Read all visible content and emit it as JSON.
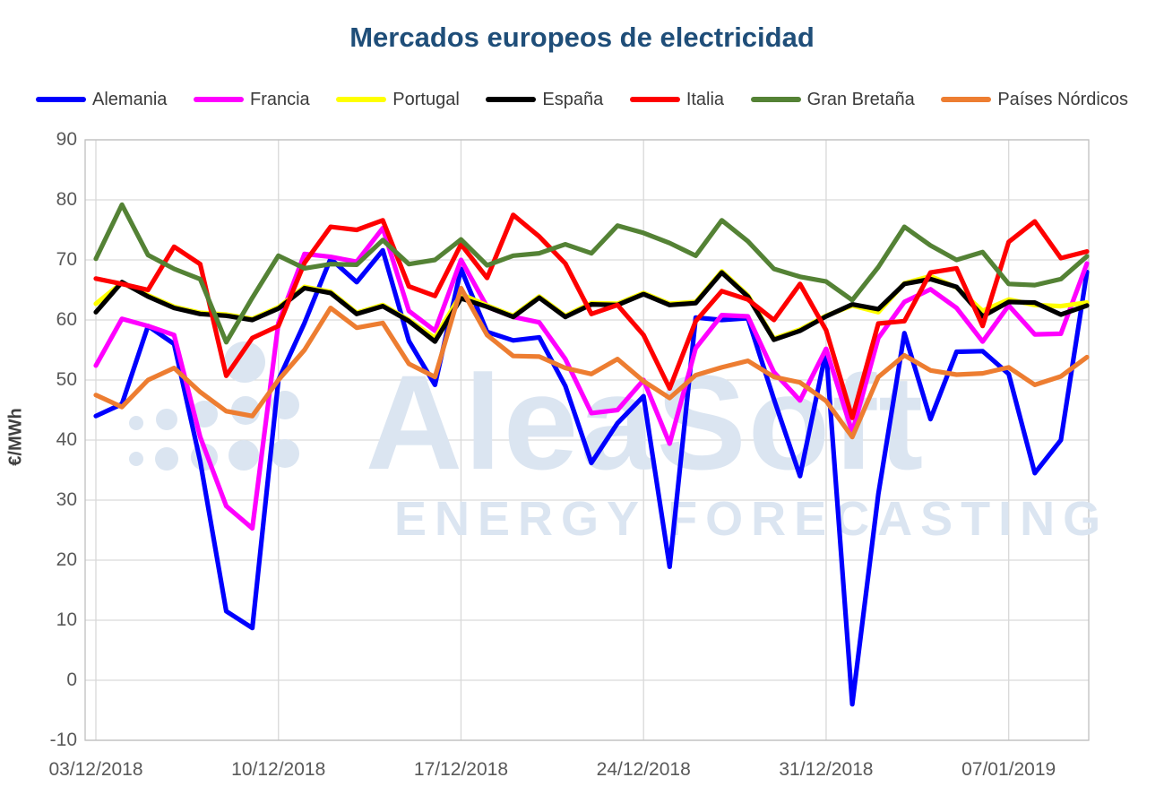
{
  "title": "Mercados europeos de electricidad",
  "y_axis_title": "€/MWh",
  "watermark": {
    "brand": "AleaSoft",
    "subtitle": "ENERGY FORECASTING"
  },
  "legend": {
    "items": [
      {
        "label": "Alemania",
        "color": "#0000fe"
      },
      {
        "label": "Francia",
        "color": "#ff00ff"
      },
      {
        "label": "Portugal",
        "color": "#ffff00"
      },
      {
        "label": "España",
        "color": "#000000"
      },
      {
        "label": "Italia",
        "color": "#fe0000"
      },
      {
        "label": "Gran Bretaña",
        "color": "#548235"
      },
      {
        "label": "Países Nórdicos",
        "color": "#ed7d31"
      }
    ]
  },
  "chart_data": {
    "type": "line",
    "title": "Mercados europeos de electricidad",
    "xlabel": "",
    "ylabel": "€/MWh",
    "ylim": [
      -10,
      90
    ],
    "ytick_interval": 10,
    "grid": true,
    "legend_position": "top",
    "y_tick_labels": [
      "90",
      "80",
      "70",
      "60",
      "50",
      "40",
      "30",
      "20",
      "10",
      "0",
      "-10"
    ],
    "x_tick_labels": [
      "03/12/2018",
      "10/12/2018",
      "17/12/2018",
      "24/12/2018",
      "31/12/2018",
      "07/01/2019"
    ],
    "x_tick_indices": [
      0,
      7,
      14,
      21,
      28,
      35
    ],
    "categories": [
      "03/12/2018",
      "04/12/2018",
      "05/12/2018",
      "06/12/2018",
      "07/12/2018",
      "08/12/2018",
      "09/12/2018",
      "10/12/2018",
      "11/12/2018",
      "12/12/2018",
      "13/12/2018",
      "14/12/2018",
      "15/12/2018",
      "16/12/2018",
      "17/12/2018",
      "18/12/2018",
      "19/12/2018",
      "20/12/2018",
      "21/12/2018",
      "22/12/2018",
      "23/12/2018",
      "24/12/2018",
      "25/12/2018",
      "26/12/2018",
      "27/12/2018",
      "28/12/2018",
      "29/12/2018",
      "30/12/2018",
      "31/12/2018",
      "01/01/2019",
      "02/01/2019",
      "03/01/2019",
      "04/01/2019",
      "05/01/2019",
      "06/01/2019",
      "07/01/2019",
      "08/01/2019",
      "09/01/2019",
      "10/01/2019"
    ],
    "series": [
      {
        "name": "Alemania",
        "color": "#0000fe",
        "values": [
          44,
          46,
          59,
          56,
          36.5,
          11.5,
          8.7,
          50,
          59.5,
          70.2,
          66.3,
          71.6,
          56.5,
          49.2,
          68.5,
          58,
          56.6,
          57.1,
          49,
          36.2,
          42.8,
          47.3,
          18.9,
          60.4,
          60,
          60.3,
          46.8,
          34,
          54.9,
          -4,
          31,
          57.8,
          43.5,
          54.7,
          54.8,
          51,
          34.5,
          40,
          68
        ]
      },
      {
        "name": "Francia",
        "color": "#ff00ff",
        "values": [
          52.4,
          60.2,
          59,
          57.5,
          40.5,
          29,
          25.3,
          59.5,
          71,
          70.5,
          69.7,
          75.3,
          61.5,
          58.2,
          70,
          62.2,
          60.5,
          59.6,
          53.5,
          44.5,
          45,
          50,
          39.4,
          55.3,
          60.8,
          60.6,
          51.3,
          46.6,
          55.2,
          41.3,
          57,
          63,
          65.1,
          62,
          56.4,
          62.4,
          57.6,
          57.7,
          69.4
        ]
      },
      {
        "name": "Portugal",
        "color": "#ffff00",
        "values": [
          62.7,
          66.2,
          64.1,
          62.2,
          61.2,
          60.9,
          60.2,
          62.1,
          65.5,
          64.7,
          61.2,
          62.5,
          60,
          57,
          64.3,
          62.4,
          60.7,
          63.9,
          60.7,
          62.8,
          62.7,
          64.5,
          62.7,
          63,
          68.1,
          64.1,
          56.9,
          58.4,
          60.7,
          62.4,
          61.3,
          66.1,
          67.3,
          65.4,
          61.5,
          63.4,
          62.5,
          62.3,
          62.9
        ]
      },
      {
        "name": "España",
        "color": "#000000",
        "values": [
          61.3,
          66.3,
          63.9,
          62,
          61,
          60.7,
          60,
          61.9,
          65.3,
          64.5,
          61,
          62.3,
          59.8,
          56.4,
          63.6,
          62.2,
          60.5,
          63.7,
          60.5,
          62.6,
          62.5,
          64.3,
          62.5,
          62.8,
          67.9,
          63.9,
          56.7,
          58.2,
          60.6,
          62.6,
          61.8,
          66,
          66.8,
          65.5,
          60.6,
          63,
          62.9,
          60.9,
          62.4
        ]
      },
      {
        "name": "Italia",
        "color": "#fe0000",
        "values": [
          66.9,
          66,
          65,
          72.2,
          69.3,
          50.7,
          57,
          59,
          69.5,
          75.5,
          75,
          76.6,
          65.6,
          64,
          72.6,
          67,
          77.5,
          73.9,
          69.4,
          61,
          62.5,
          57.5,
          48.6,
          59.8,
          64.8,
          63.4,
          60,
          66,
          58.3,
          43.7,
          59.4,
          59.8,
          67.9,
          68.6,
          59,
          73,
          76.4,
          70.3,
          71.4
        ]
      },
      {
        "name": "Gran Bretaña",
        "color": "#548235",
        "values": [
          70.2,
          79.2,
          70.8,
          68.5,
          66.8,
          56.3,
          63.7,
          70.7,
          68.6,
          69.3,
          69.2,
          73.3,
          69.3,
          70,
          73.4,
          69.1,
          70.7,
          71.1,
          72.6,
          71.1,
          75.7,
          74.5,
          72.8,
          70.7,
          76.6,
          73.1,
          68.5,
          67.2,
          66.4,
          63.3,
          68.8,
          75.5,
          72.4,
          70,
          71.3,
          66,
          65.8,
          66.8,
          70.6
        ]
      },
      {
        "name": "Países Nórdicos",
        "color": "#ed7d31",
        "values": [
          47.5,
          45.5,
          50,
          52,
          48,
          44.8,
          44,
          50,
          55,
          62,
          58.7,
          59.5,
          52.7,
          50.5,
          65.3,
          57.5,
          54,
          53.9,
          52,
          51,
          53.5,
          49.8,
          47,
          50.8,
          52.1,
          53.2,
          50.5,
          49.6,
          46.5,
          40.5,
          50.5,
          54.1,
          51.6,
          50.9,
          51.1,
          52.1,
          49.2,
          50.6,
          53.8
        ]
      }
    ]
  }
}
